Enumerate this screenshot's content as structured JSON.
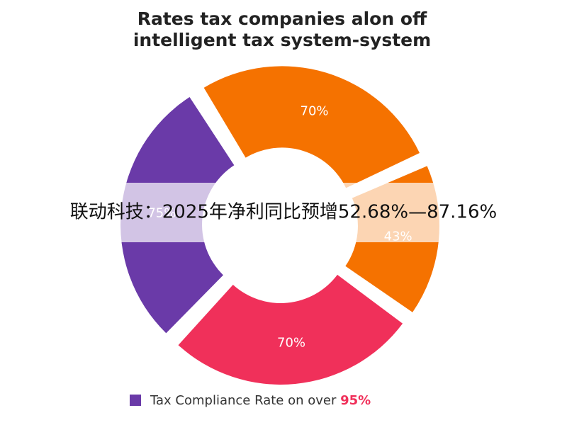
{
  "chart_data": {
    "type": "pie",
    "title": [
      "Rates tax companies alon off",
      "intelligent tax system-system"
    ],
    "values": [
      70,
      43,
      70,
      75
    ],
    "value_labels": [
      "70%",
      "43%",
      "70%",
      "75%"
    ],
    "colors": [
      "#f57200",
      "#f57200",
      "#f0305a",
      "#6a3aa8"
    ],
    "legend": {
      "text": "Tax Compliance Rate on over",
      "highlight": "95%",
      "color": "#6a3aa8"
    }
  },
  "caption": "联动科技：2025年净利同比预增52.68%—87.16%"
}
